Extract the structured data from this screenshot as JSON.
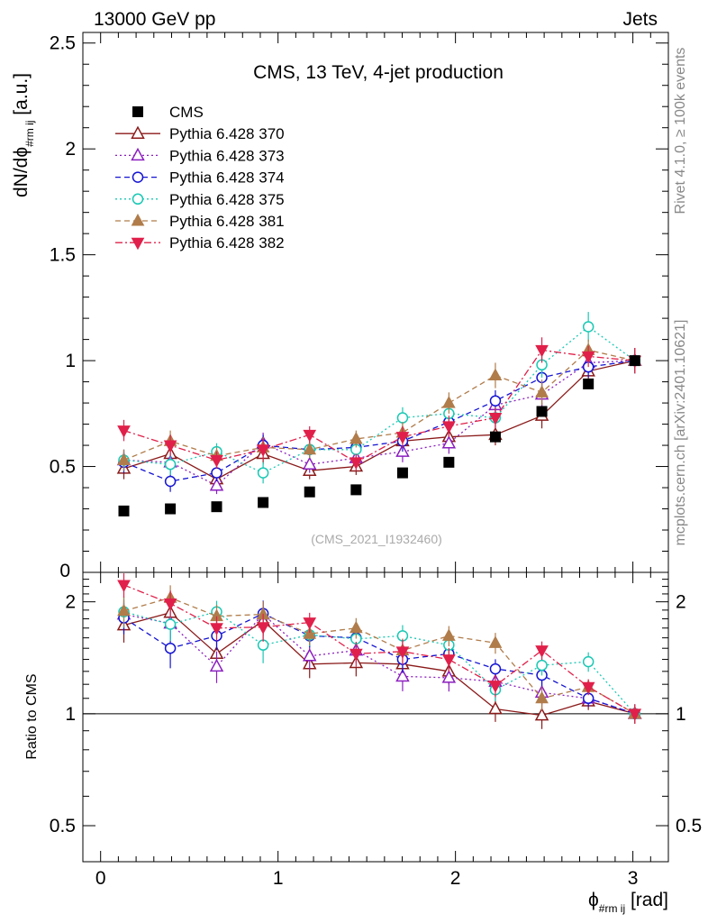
{
  "header": {
    "left": "13000 GeV pp",
    "right": "Jets"
  },
  "side_labels": {
    "rivet": "Rivet 4.1.0, ≥ 100k events",
    "mcplots": "mcplots.cern.ch [arXiv:2401.10621]"
  },
  "chart_data": [
    {
      "type": "scatter",
      "panel": "main",
      "title": "CMS, 13 TeV, 4-jet production",
      "watermark": "(CMS_2021_I1932460)",
      "ylabel": "dN/dϕ",
      "ylabel_sub": "#rm ij",
      "ylabel_unit": " [a.u.]",
      "xlim": [
        -0.1,
        3.2
      ],
      "ylim": [
        0,
        2.55
      ],
      "yticks": [
        0.5,
        1,
        1.5,
        2,
        2.5
      ],
      "ytick_labels": [
        "0.5",
        "1",
        "1.5",
        "2",
        "2.5"
      ],
      "y_zero_label": "0",
      "x": [
        0.131,
        0.393,
        0.654,
        0.916,
        1.178,
        1.44,
        1.702,
        1.963,
        2.225,
        2.487,
        2.749,
        3.011
      ],
      "data": {
        "name": "CMS",
        "values": [
          0.29,
          0.3,
          0.31,
          0.33,
          0.38,
          0.39,
          0.47,
          0.52,
          0.64,
          0.76,
          0.89,
          1.0
        ]
      },
      "series": [
        {
          "name": "Pythia 6.428 370",
          "color": "#8b1a1a",
          "dash": "",
          "marker": "triangle-open",
          "values": [
            0.49,
            0.56,
            0.44,
            0.56,
            0.48,
            0.5,
            0.62,
            0.64,
            0.65,
            0.74,
            0.95,
            1.0
          ],
          "errors": [
            0.05,
            0.05,
            0.04,
            0.05,
            0.04,
            0.04,
            0.05,
            0.05,
            0.05,
            0.06,
            0.05,
            0.06
          ]
        },
        {
          "name": "Pythia 6.428 373",
          "color": "#8b1fbf",
          "dash": "2,3",
          "marker": "triangle-open",
          "values": [
            0.53,
            0.52,
            0.41,
            0.61,
            0.51,
            0.54,
            0.57,
            0.61,
            0.79,
            0.84,
            0.99,
            1.0
          ],
          "errors": [
            0.05,
            0.05,
            0.04,
            0.05,
            0.04,
            0.04,
            0.05,
            0.05,
            0.05,
            0.06,
            0.05,
            0.06
          ]
        },
        {
          "name": "Pythia 6.428 374",
          "color": "#1414d2",
          "dash": "6,4",
          "marker": "circle-open",
          "values": [
            0.52,
            0.43,
            0.47,
            0.6,
            0.58,
            0.59,
            0.62,
            0.71,
            0.81,
            0.92,
            0.97,
            1.0
          ],
          "errors": [
            0.05,
            0.05,
            0.04,
            0.05,
            0.04,
            0.04,
            0.05,
            0.05,
            0.05,
            0.06,
            0.05,
            0.06
          ]
        },
        {
          "name": "Pythia 6.428 375",
          "color": "#1ac8b4",
          "dash": "2,3",
          "marker": "circle-open",
          "values": [
            0.53,
            0.51,
            0.57,
            0.47,
            0.58,
            0.58,
            0.73,
            0.75,
            0.73,
            0.98,
            1.16,
            1.0
          ],
          "errors": [
            0.05,
            0.05,
            0.04,
            0.05,
            0.04,
            0.04,
            0.05,
            0.05,
            0.05,
            0.06,
            0.07,
            0.06
          ]
        },
        {
          "name": "Pythia 6.428 381",
          "color": "#b07c4a",
          "dash": "6,4",
          "marker": "triangle-filled",
          "values": [
            0.53,
            0.62,
            0.55,
            0.59,
            0.58,
            0.63,
            0.66,
            0.8,
            0.93,
            0.85,
            1.05,
            1.0
          ],
          "errors": [
            0.05,
            0.05,
            0.04,
            0.05,
            0.04,
            0.04,
            0.05,
            0.05,
            0.06,
            0.06,
            0.05,
            0.06
          ]
        },
        {
          "name": "Pythia 6.428 382",
          "color": "#e0204a",
          "dash": "8,3,2,3",
          "marker": "triangle-down-filled",
          "values": [
            0.67,
            0.6,
            0.53,
            0.58,
            0.65,
            0.52,
            0.64,
            0.69,
            0.73,
            1.05,
            1.02,
            1.0
          ],
          "errors": [
            0.05,
            0.05,
            0.04,
            0.05,
            0.04,
            0.04,
            0.05,
            0.05,
            0.05,
            0.06,
            0.05,
            0.06
          ]
        }
      ]
    },
    {
      "type": "scatter",
      "panel": "ratio",
      "ylabel": "Ratio to CMS",
      "xlabel": "ϕ",
      "xlabel_sub": "#rm ij",
      "xlabel_unit": " [rad]",
      "xlim": [
        -0.1,
        3.2
      ],
      "xticks": [
        0,
        1,
        2,
        3
      ],
      "xtick_labels": [
        "0",
        "1",
        "2",
        "3"
      ],
      "ylim": [
        0.4,
        2.4
      ],
      "yscale": "log",
      "yticks": [
        0.5,
        1,
        2
      ],
      "ytick_labels": [
        "0.5",
        "1",
        "2"
      ],
      "reference_line": 1,
      "x": [
        0.131,
        0.393,
        0.654,
        0.916,
        1.178,
        1.44,
        1.702,
        1.963,
        2.225,
        2.487,
        2.749,
        3.011
      ],
      "series": [
        {
          "name": "Pythia 6.428 370",
          "values": [
            1.73,
            1.87,
            1.45,
            1.78,
            1.36,
            1.37,
            1.36,
            1.3,
            1.03,
            0.99,
            1.08,
            1.0
          ]
        },
        {
          "name": "Pythia 6.428 373",
          "values": [
            1.85,
            1.75,
            1.34,
            1.85,
            1.43,
            1.48,
            1.26,
            1.25,
            1.22,
            1.14,
            1.1,
            1.0
          ]
        },
        {
          "name": "Pythia 6.428 374",
          "values": [
            1.81,
            1.5,
            1.62,
            1.86,
            1.62,
            1.6,
            1.4,
            1.45,
            1.32,
            1.27,
            1.1,
            1.0
          ]
        },
        {
          "name": "Pythia 6.428 375",
          "values": [
            1.88,
            1.74,
            1.88,
            1.53,
            1.63,
            1.59,
            1.62,
            1.53,
            1.16,
            1.35,
            1.38,
            1.0
          ]
        },
        {
          "name": "Pythia 6.428 381",
          "values": [
            1.89,
            2.05,
            1.83,
            1.85,
            1.64,
            1.7,
            1.48,
            1.62,
            1.55,
            1.1,
            1.18,
            1.0
          ]
        },
        {
          "name": "Pythia 6.428 382",
          "values": [
            2.22,
            1.98,
            1.7,
            1.71,
            1.76,
            1.45,
            1.47,
            1.4,
            1.19,
            1.48,
            1.18,
            1.0
          ]
        }
      ]
    }
  ]
}
